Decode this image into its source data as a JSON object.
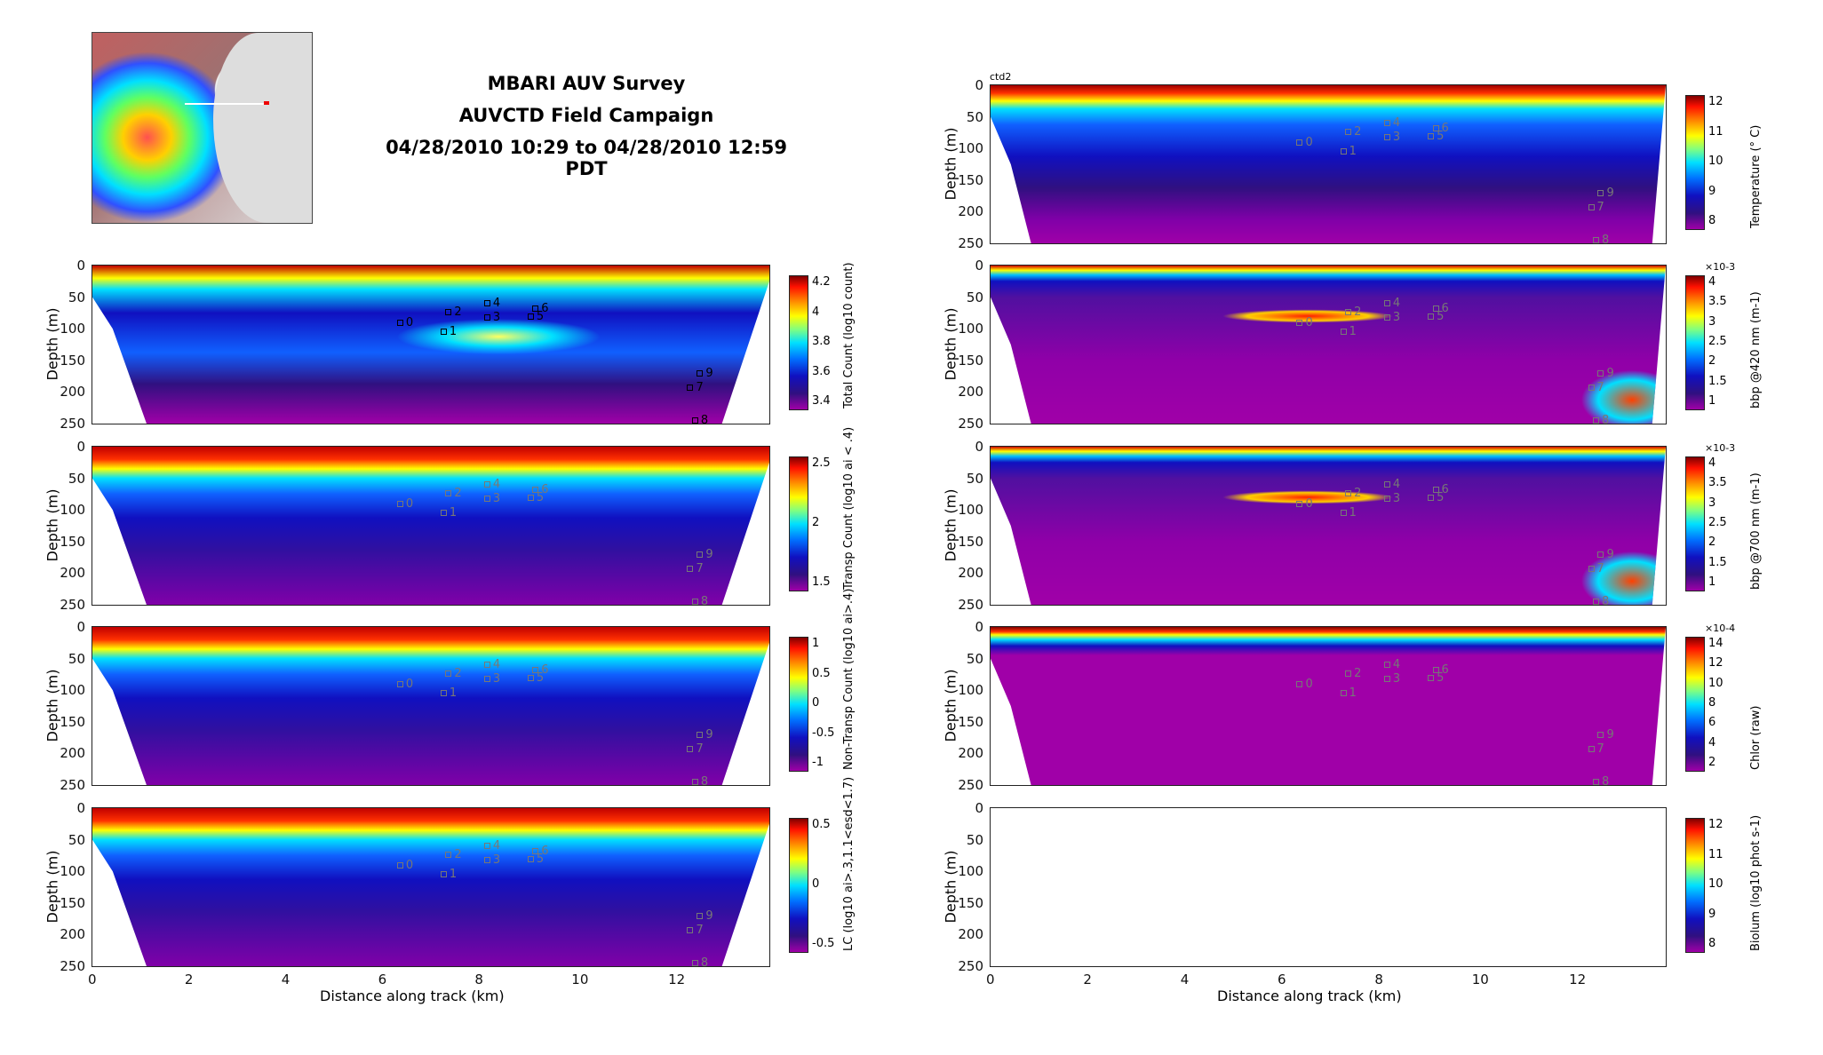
{
  "header": {
    "line1": "MBARI AUV Survey",
    "line2": "AUVCTD Field Campaign",
    "line3": "04/28/2010 10:29 to 04/28/2010 12:59 PDT"
  },
  "instrument_label": "ctd2",
  "colors": {
    "low": "#a000a8",
    "mid": "#00e0ff",
    "high": "#800000"
  },
  "chart_data": [
    {
      "type": "heatmap",
      "id": "total",
      "side": "left",
      "row": 0,
      "ylabel": "Depth (m)",
      "xlabel": "",
      "cbar_label": "Total Count (log10 count)",
      "cbar_ticks": [
        "4.2",
        "4",
        "3.8",
        "3.6",
        "3.4"
      ],
      "cbar_exp": "",
      "xlim": [
        0,
        14
      ],
      "ylim": [
        250,
        0
      ],
      "yticks": [
        "0",
        "50",
        "100",
        "150",
        "200",
        "250"
      ],
      "xticks": [],
      "markers_dark": true,
      "zigzag": true
    },
    {
      "type": "heatmap",
      "id": "transp",
      "side": "left",
      "row": 1,
      "ylabel": "Depth (m)",
      "xlabel": "",
      "cbar_label": "Transp Count (log10 ai < .4)",
      "cbar_ticks": [
        "2.5",
        "2",
        "1.5"
      ],
      "cbar_exp": "",
      "xlim": [
        0,
        14
      ],
      "ylim": [
        250,
        0
      ],
      "yticks": [
        "0",
        "50",
        "100",
        "150",
        "200",
        "250"
      ],
      "xticks": []
    },
    {
      "type": "heatmap",
      "id": "nontransp",
      "side": "left",
      "row": 2,
      "ylabel": "Depth (m)",
      "xlabel": "",
      "cbar_label": "Non-Transp Count (log10 ai>.4)",
      "cbar_ticks": [
        "1",
        "0.5",
        "0",
        "-0.5",
        "-1"
      ],
      "cbar_exp": "",
      "xlim": [
        0,
        14
      ],
      "ylim": [
        250,
        0
      ],
      "yticks": [
        "0",
        "50",
        "100",
        "150",
        "200",
        "250"
      ],
      "xticks": []
    },
    {
      "type": "heatmap",
      "id": "lc",
      "side": "left",
      "row": 3,
      "ylabel": "Depth (m)",
      "xlabel": "Distance along track (km)",
      "cbar_label": "LC (log10 ai>.3,1.1<esd<1.7)",
      "cbar_ticks": [
        "0.5",
        "0",
        "-0.5"
      ],
      "cbar_exp": "",
      "xlim": [
        0,
        14
      ],
      "ylim": [
        250,
        0
      ],
      "yticks": [
        "0",
        "50",
        "100",
        "150",
        "200",
        "250"
      ],
      "xticks": [
        "0",
        "2",
        "4",
        "6",
        "8",
        "10",
        "12"
      ]
    },
    {
      "type": "heatmap",
      "id": "temp",
      "side": "right",
      "row": -1,
      "ylabel": "Depth (m)",
      "xlabel": "",
      "cbar_label": "Temperature (° C)",
      "cbar_ticks": [
        "12",
        "11",
        "10",
        "9",
        "8"
      ],
      "cbar_exp": "",
      "xlim": [
        0,
        13.9
      ],
      "ylim": [
        250,
        0
      ],
      "yticks": [
        "0",
        "50",
        "100",
        "150",
        "200",
        "250"
      ],
      "xticks": []
    },
    {
      "type": "heatmap",
      "id": "bbp420",
      "side": "right",
      "row": 0,
      "ylabel": "",
      "xlabel": "",
      "cbar_label": "bbp @420 nm (m-1)",
      "cbar_ticks": [
        "4",
        "3.5",
        "3",
        "2.5",
        "2",
        "1.5",
        "1"
      ],
      "cbar_exp": "×10-3",
      "xlim": [
        0,
        13.9
      ],
      "ylim": [
        250,
        0
      ],
      "yticks": [
        "0",
        "50",
        "100",
        "150",
        "200",
        "250"
      ],
      "xticks": []
    },
    {
      "type": "heatmap",
      "id": "bbp700",
      "side": "right",
      "row": 1,
      "ylabel": "",
      "xlabel": "",
      "cbar_label": "bbp @700 nm (m-1)",
      "cbar_ticks": [
        "4",
        "3.5",
        "3",
        "2.5",
        "2",
        "1.5",
        "1"
      ],
      "cbar_exp": "×10-3",
      "xlim": [
        0,
        13.9
      ],
      "ylim": [
        250,
        0
      ],
      "yticks": [
        "0",
        "50",
        "100",
        "150",
        "200",
        "250"
      ],
      "xticks": []
    },
    {
      "type": "heatmap",
      "id": "chlor",
      "side": "right",
      "row": 2,
      "ylabel": "",
      "xlabel": "",
      "cbar_label": "Chlor (raw)",
      "cbar_ticks": [
        "14",
        "12",
        "10",
        "8",
        "6",
        "4",
        "2"
      ],
      "cbar_exp": "×10-4",
      "xlim": [
        0,
        13.9
      ],
      "ylim": [
        250,
        0
      ],
      "yticks": [
        "0",
        "50",
        "100",
        "150",
        "200",
        "250"
      ],
      "xticks": []
    },
    {
      "type": "heatmap",
      "id": "biolum",
      "side": "right",
      "row": 3,
      "ylabel": "Depth (m)",
      "xlabel": "Distance along track (km)",
      "cbar_label": "Biolum (log10 phot s-1)",
      "cbar_ticks": [
        "12",
        "11",
        "10",
        "9",
        "8"
      ],
      "cbar_exp": "",
      "xlim": [
        0,
        13.9
      ],
      "ylim": [
        250,
        0
      ],
      "yticks": [
        "0",
        "50",
        "100",
        "150",
        "200",
        "250"
      ],
      "xticks": [
        "0",
        "2",
        "4",
        "6",
        "8",
        "10",
        "12"
      ],
      "empty": true
    }
  ],
  "markers": [
    {
      "label": "0",
      "km": 6.3,
      "depth": 91
    },
    {
      "label": "1",
      "km": 7.2,
      "depth": 105
    },
    {
      "label": "2",
      "km": 7.3,
      "depth": 74
    },
    {
      "label": "3",
      "km": 8.1,
      "depth": 83
    },
    {
      "label": "4",
      "km": 8.1,
      "depth": 61
    },
    {
      "label": "5",
      "km": 9.0,
      "depth": 81
    },
    {
      "label": "6",
      "km": 9.1,
      "depth": 69
    },
    {
      "label": "7",
      "km": 12.3,
      "depth": 194
    },
    {
      "label": "8",
      "km": 12.4,
      "depth": 246
    },
    {
      "label": "9",
      "km": 12.5,
      "depth": 172
    }
  ]
}
